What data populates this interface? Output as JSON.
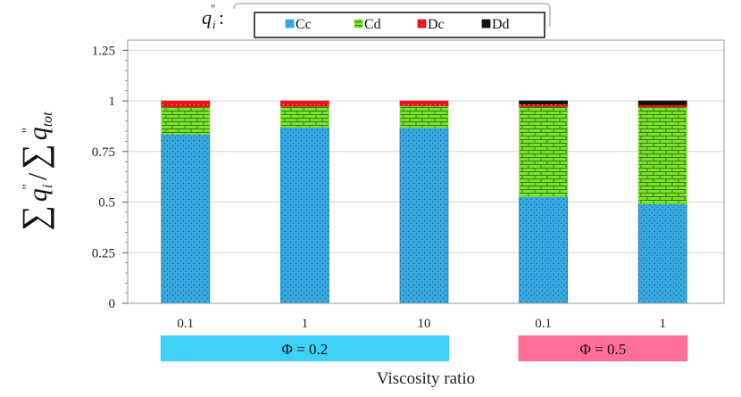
{
  "chart_data": {
    "type": "bar",
    "stacked": true,
    "categories": [
      "0.1",
      "1",
      "10",
      "0.1",
      "1"
    ],
    "groups": [
      {
        "label": "Φ = 0.2",
        "color": "#3fd0f8",
        "categories": [
          0,
          1,
          2
        ]
      },
      {
        "label": "Φ = 0.5",
        "color": "#ff6e98",
        "categories": [
          3,
          4
        ]
      }
    ],
    "series": [
      {
        "name": "Cc",
        "color": "#36a9e1",
        "values": [
          0.835,
          0.87,
          0.868,
          0.527,
          0.492
        ]
      },
      {
        "name": "Cd",
        "color": "#7ee22c",
        "values": [
          0.135,
          0.103,
          0.108,
          0.445,
          0.478
        ]
      },
      {
        "name": "Dc",
        "color": "#e8141c",
        "values": [
          0.03,
          0.027,
          0.024,
          0.013,
          0.011
        ]
      },
      {
        "name": "Dd",
        "color": "#111111",
        "values": [
          0.0,
          0.0,
          0.0,
          0.015,
          0.019
        ]
      }
    ],
    "yticks": [
      "0",
      "0.25",
      "0.5",
      "0.75",
      "1",
      "1.25"
    ],
    "ylim": [
      0,
      1.3
    ],
    "grid": true,
    "xlabel": "Viscosity ratio",
    "legend_title": "q",
    "legend_placement": "top-center"
  }
}
